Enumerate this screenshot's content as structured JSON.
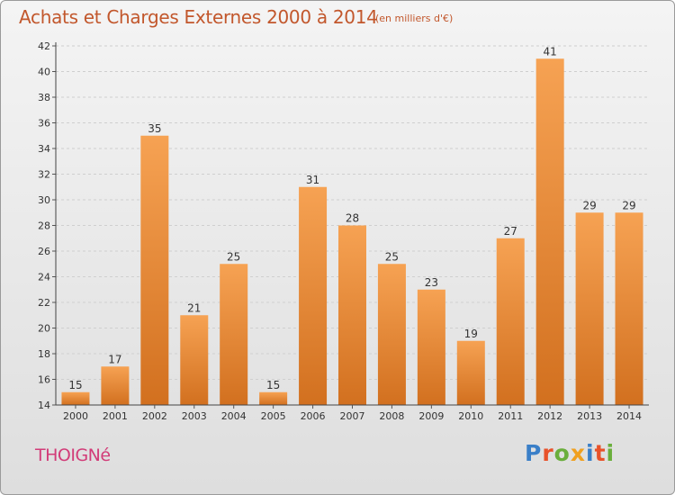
{
  "header": {
    "title": "Achats et Charges Externes 2000 à 2014",
    "subtitle": "(en milliers d'€)"
  },
  "footer": {
    "commune": "THOIGNé",
    "logo_text": "Proxiti",
    "logo_colors": [
      "#3a7fc8",
      "#e8522a",
      "#6aae3c",
      "#f0a020",
      "#3a7fc8",
      "#e8522a",
      "#6aae3c"
    ]
  },
  "colors": {
    "bar_top": "#f6a253",
    "bar_bottom": "#d2701f",
    "title": "#c2572c",
    "commune": "#d23c78"
  },
  "chart_data": {
    "type": "bar",
    "title": "Achats et Charges Externes 2000 à 2014",
    "subtitle": "(en milliers d'€)",
    "categories": [
      "2000",
      "2001",
      "2002",
      "2003",
      "2004",
      "2005",
      "2006",
      "2007",
      "2008",
      "2009",
      "2010",
      "2011",
      "2012",
      "2013",
      "2014"
    ],
    "values": [
      15,
      17,
      35,
      21,
      25,
      15,
      31,
      28,
      25,
      23,
      19,
      27,
      41,
      29,
      29
    ],
    "ylim": [
      14,
      42
    ],
    "yticks": [
      14,
      16,
      18,
      20,
      22,
      24,
      26,
      28,
      30,
      32,
      34,
      36,
      38,
      40,
      42
    ],
    "grid": true,
    "data_labels": true,
    "xlabel": "",
    "ylabel": ""
  }
}
